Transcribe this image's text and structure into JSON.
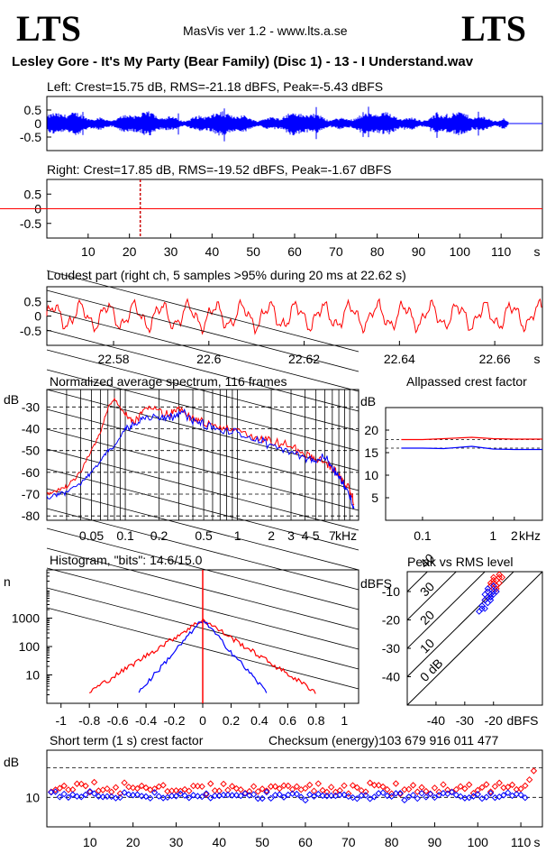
{
  "header": {
    "logo_left": "LTS",
    "logo_right": "LTS",
    "version": "MasVis ver 1.2 - www.lts.a.se",
    "file_title": "Lesley Gore - It's My Party (Bear Family) (Disc 1) - 13 - I Understand.wav"
  },
  "colors": {
    "left": "#0000ff",
    "right": "#ff0000",
    "axis": "#000000",
    "background": "#ffffff"
  },
  "chart_data": [
    {
      "id": "left-waveform",
      "type": "line",
      "title": "Left: Crest=15.75 dB, RMS=-21.18 dBFS, Peak=-5.43 dBFS",
      "ylim": [
        -1,
        1
      ],
      "y_ticks": [
        "0.5",
        "0",
        "-0.5"
      ],
      "xlim": [
        0,
        120
      ],
      "duration_s": 112,
      "series": [
        {
          "color": "#0000ff"
        }
      ]
    },
    {
      "id": "right-waveform",
      "type": "line",
      "title": "Right: Crest=17.85 dB, RMS=-19.52 dBFS, Peak=-1.67 dBFS",
      "ylim": [
        -1,
        1
      ],
      "y_ticks": [
        "0.5",
        "0",
        "-0.5"
      ],
      "xlim": [
        0,
        120
      ],
      "x_ticks": [
        "10",
        "20",
        "30",
        "40",
        "50",
        "60",
        "70",
        "80",
        "90",
        "100",
        "110"
      ],
      "x_unit": "s",
      "marker_s": 22.62,
      "series": [
        {
          "color": "#ff0000"
        }
      ]
    },
    {
      "id": "loudest-part",
      "type": "line",
      "title": "Loudest part (right ch, 5 samples >95% during 20 ms at 22.62 s)",
      "ylim": [
        -1,
        1
      ],
      "y_ticks": [
        "0.5",
        "0",
        "-0.5"
      ],
      "xlim": [
        22.566,
        22.67
      ],
      "x_ticks": [
        "22.58",
        "22.6",
        "22.62",
        "22.64",
        "22.66"
      ],
      "x_unit": "s",
      "series": [
        {
          "color": "#ff0000"
        }
      ]
    },
    {
      "id": "average-spectrum",
      "type": "line",
      "title": "Normalized average spectrum, 116 frames",
      "ylabel": "dB",
      "xlabel": "kHz",
      "y_ticks": [
        "-30",
        "-40",
        "-50",
        "-60",
        "-70",
        "-80"
      ],
      "x_ticks": [
        "0.05",
        "0.1",
        "0.2",
        "0.5",
        "1",
        "2",
        "3",
        "4",
        "5",
        "7"
      ],
      "series": [
        {
          "color": "#ff0000",
          "freq_khz": [
            0.02,
            0.025,
            0.03,
            0.04,
            0.05,
            0.06,
            0.07,
            0.08,
            0.1,
            0.12,
            0.15,
            0.2,
            0.25,
            0.3,
            0.4,
            0.5,
            0.7,
            1,
            1.5,
            2,
            3,
            4,
            5,
            6,
            7,
            8,
            9,
            10,
            11
          ],
          "db": [
            -70,
            -68,
            -67,
            -60,
            -50,
            -42,
            -30,
            -26,
            -34,
            -37,
            -30,
            -32,
            -34,
            -30,
            -35,
            -37,
            -40,
            -40,
            -44,
            -46,
            -48,
            -52,
            -54,
            -55,
            -58,
            -62,
            -65,
            -68,
            -75
          ]
        },
        {
          "color": "#0000ff",
          "freq_khz": [
            0.02,
            0.025,
            0.03,
            0.04,
            0.05,
            0.06,
            0.07,
            0.08,
            0.1,
            0.12,
            0.15,
            0.2,
            0.25,
            0.3,
            0.4,
            0.5,
            0.7,
            1,
            1.5,
            2,
            3,
            4,
            5,
            6,
            7,
            8,
            9,
            10,
            11
          ],
          "db": [
            -72,
            -70,
            -69,
            -65,
            -60,
            -55,
            -50,
            -48,
            -40,
            -38,
            -35,
            -34,
            -35,
            -32,
            -36,
            -38,
            -41,
            -42,
            -45,
            -48,
            -50,
            -53,
            -55,
            -53,
            -58,
            -62,
            -66,
            -70,
            -78
          ]
        }
      ]
    },
    {
      "id": "allpassed-crest-factor",
      "type": "line",
      "title": "Allpassed crest factor",
      "ylabel": "dB",
      "xlabel": "kHz",
      "y_ticks": [
        "20",
        "15",
        "10",
        "5"
      ],
      "x_ticks": [
        "0.1",
        "1",
        "2"
      ],
      "series": [
        {
          "color": "#ff0000",
          "freq_khz": [
            0.05,
            0.1,
            0.2,
            0.5,
            1,
            2,
            4
          ],
          "db": [
            17.9,
            17.9,
            18.1,
            18.4,
            18.1,
            18.0,
            18.0
          ]
        },
        {
          "color": "#0000ff",
          "freq_khz": [
            0.05,
            0.1,
            0.2,
            0.5,
            1,
            2,
            4
          ],
          "db": [
            16.0,
            16.0,
            15.9,
            16.4,
            15.8,
            15.7,
            15.7
          ]
        }
      ]
    },
    {
      "id": "histogram",
      "type": "line",
      "title": "Histogram, \"bits\": 14.6/15.0",
      "ylabel": "n",
      "y_ticks": [
        "1000",
        "100",
        "10"
      ],
      "x_ticks": [
        "-1",
        "-0.8",
        "-0.6",
        "-0.4",
        "-0.2",
        "0",
        "0.2",
        "0.4",
        "0.6",
        "0.8",
        "1"
      ],
      "xlim": [
        -1.1,
        1.1
      ],
      "series": [
        {
          "color": "#ff0000",
          "spread": 0.8,
          "peak": 900
        },
        {
          "color": "#0000ff",
          "spread": 0.45,
          "peak": 900
        }
      ]
    },
    {
      "id": "peak-vs-rms",
      "type": "scatter",
      "title": "Peak vs RMS level",
      "ylabel": "dBFS",
      "xlabel": "dBFS",
      "y_ticks": [
        "-10",
        "-20",
        "-30",
        "-40"
      ],
      "x_ticks": [
        "-40",
        "-30",
        "-20"
      ],
      "diagonal_labels": [
        "40",
        "30",
        "20",
        "10",
        "0 dB"
      ],
      "series": [
        {
          "color": "#ff0000",
          "rms_dbfs": [
            -22,
            -21,
            -20,
            -19,
            -18,
            -20,
            -21,
            -19,
            -18,
            -17,
            -20,
            -22,
            -23,
            -19,
            -18,
            -21,
            -20,
            -19
          ],
          "peak_dbfs": [
            -10,
            -8,
            -7,
            -6,
            -5,
            -9,
            -11,
            -8,
            -7,
            -5,
            -6,
            -12,
            -13,
            -10,
            -4,
            -7,
            -5,
            -9
          ]
        },
        {
          "color": "#0000ff",
          "rms_dbfs": [
            -24,
            -23,
            -22,
            -21,
            -20,
            -22,
            -23,
            -21,
            -20,
            -19,
            -22,
            -24,
            -25,
            -21,
            -20,
            -23,
            -22,
            -21
          ],
          "peak_dbfs": [
            -15,
            -13,
            -12,
            -11,
            -10,
            -14,
            -16,
            -12,
            -11,
            -10,
            -9,
            -16,
            -17,
            -13,
            -8,
            -11,
            -10,
            -12
          ]
        }
      ]
    },
    {
      "id": "short-term-crest",
      "type": "scatter",
      "title": "Short term (1 s) crest factor",
      "checksum_label": "Checksum (energy):",
      "checksum_value": "103 679 916 011 477",
      "ylabel": "dB",
      "y_ticks": [
        "10"
      ],
      "x_ticks": [
        "10",
        "20",
        "30",
        "40",
        "50",
        "60",
        "70",
        "80",
        "90",
        "100",
        "110"
      ],
      "x_unit": "s",
      "xlim": [
        0,
        115
      ],
      "series": [
        {
          "color": "#ff0000",
          "mean_db": 11.5,
          "spread_db": 1.5,
          "last_points": [
            [
              112,
              13
            ],
            [
              113,
              14.5
            ]
          ]
        },
        {
          "color": "#0000ff",
          "mean_db": 10.3,
          "spread_db": 1.0
        }
      ]
    }
  ]
}
